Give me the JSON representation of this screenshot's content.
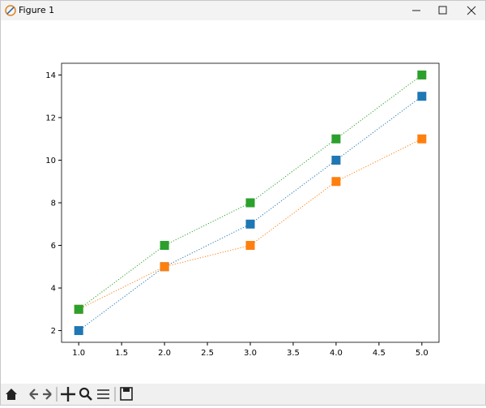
{
  "window": {
    "title": "Figure 1"
  },
  "chart_data": {
    "type": "line",
    "x": [
      1,
      2,
      3,
      4,
      5
    ],
    "series": [
      {
        "color": "#1f77b4",
        "values": [
          2,
          5,
          7,
          10,
          13
        ]
      },
      {
        "color": "#ff7f0e",
        "values": [
          3,
          5,
          6,
          9,
          11
        ]
      },
      {
        "color": "#2ca02c",
        "values": [
          3,
          6,
          8,
          11,
          14
        ]
      }
    ],
    "line_style": "dotted",
    "marker": "square",
    "xlim": [
      0.8,
      5.2
    ],
    "xticks": [
      {
        "value": 1,
        "label": "1.0"
      },
      {
        "value": 1.5,
        "label": "1.5"
      },
      {
        "value": 2,
        "label": "2.0"
      },
      {
        "value": 2.5,
        "label": "2.5"
      },
      {
        "value": 3,
        "label": "3.0"
      },
      {
        "value": 3.5,
        "label": "3.5"
      },
      {
        "value": 4,
        "label": "4.0"
      },
      {
        "value": 4.5,
        "label": "4.5"
      },
      {
        "value": 5,
        "label": "5.0"
      }
    ],
    "ylim": [
      1.45,
      14.55
    ],
    "yticks": [
      2,
      4,
      6,
      8,
      10,
      12,
      14
    ],
    "grid": false
  }
}
